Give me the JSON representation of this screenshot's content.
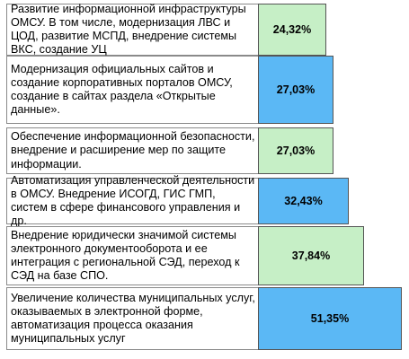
{
  "chart_data": {
    "type": "bar",
    "categories": [
      "Развитие информационной инфраструктуры ОМСУ. В том числе, модернизация ЛВС и ЦОД, развитие МСПД, внедрение системы ВКС, создание УЦ",
      "Модернизация официальных сайтов и создание корпоративных порталов ОМСУ, создание в сайтах раздела «Открытые данные».",
      "Обеспечение информационной безопасности, внедрение и расширение мер по защите информации.",
      "Автоматизация управленческой деятельности в ОМСУ. Внедрение ИСОГД, ГИС ГМП, систем в сфере финансового управления и др.",
      "Внедрение юридически значимой системы электронного документооборота и ее интеграция с региональной СЭД, переход к СЭД на базе СПО.",
      "Увеличение количества муниципальных услуг, оказываемых в электронной форме, автоматизация процесса оказания муниципальных услуг"
    ],
    "values": [
      24.32,
      27.03,
      27.03,
      32.43,
      37.84,
      51.35
    ],
    "value_labels": [
      "24,32%",
      "27,03%",
      "27,03%",
      "32,43%",
      "37,84%",
      "51,35%"
    ],
    "bar_colors": [
      "#c6efc6",
      "#5bb8f5",
      "#c6efc6",
      "#5bb8f5",
      "#c6efc6",
      "#5bb8f5"
    ],
    "title": "",
    "xlabel": "",
    "ylabel": "",
    "xlim": [
      0,
      51.35
    ]
  }
}
